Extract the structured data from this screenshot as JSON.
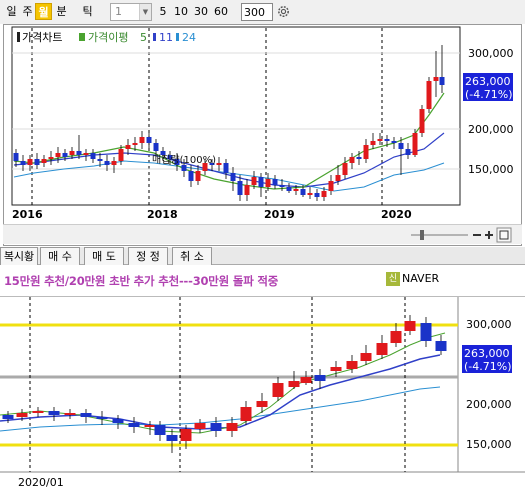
{
  "toolbar": {
    "periods": [
      {
        "label": "일",
        "selected": false
      },
      {
        "label": "주",
        "selected": false
      },
      {
        "label": "월",
        "selected": true
      },
      {
        "label": "분",
        "selected": false
      },
      {
        "label": "틱",
        "selected": false
      }
    ],
    "interval_value": "1",
    "quick_intervals": [
      "5",
      "10",
      "30",
      "60"
    ],
    "count_value": "300",
    "settings_icon": "gear-icon"
  },
  "top_chart": {
    "legend": {
      "title": "가격차트",
      "ma_label": "가격이평",
      "ma_periods": [
        "5",
        "11",
        "24"
      ]
    },
    "y_ticks": [
      "300,000",
      "200,000",
      "150,000"
    ],
    "x_ticks": [
      "2016",
      "2018",
      "2019",
      "2020"
    ],
    "current_price": "263,000",
    "current_change": "(-4.71%)",
    "annotation": "매집량(100%)",
    "colors": {
      "up": "#e0191c",
      "down": "#1a33c8",
      "ma5": "#4aa32f",
      "ma11": "#3040c8",
      "ma24": "#2a8fd2",
      "price_tag": "#1a22d8"
    }
  },
  "tabs": [
    "복시황",
    "매 수",
    "매 도",
    "정 정",
    "취 소"
  ],
  "news": {
    "headline": "15만원 추천/20만원 초반 추가 추천---30만원 돌파 적중",
    "badge": "신",
    "source": "NAVER"
  },
  "bottom_chart": {
    "y_ticks": [
      "300,000",
      "200,000",
      "150,000"
    ],
    "x_tick": "2020/01",
    "current_price": "263,000",
    "current_change": "(-4.71%)",
    "colors": {
      "level_line": "#f0e010",
      "grey_line": "#aaaaaa"
    }
  }
}
